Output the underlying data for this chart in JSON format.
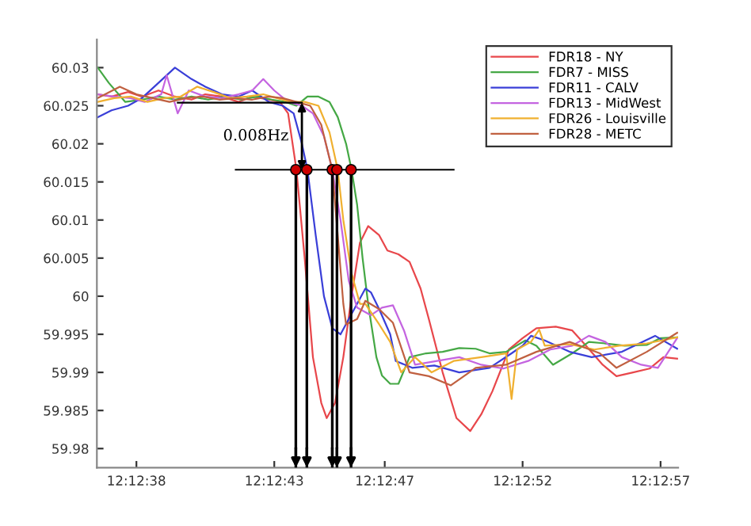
{
  "chart_data": {
    "type": "line",
    "annotations": [
      "0.008Hz"
    ],
    "xlim": [
      12.210158,
      12.21601
    ],
    "ylim": [
      59.9775,
      60.0337
    ],
    "xticks": [
      {
        "value": 12.210556,
        "label": "12:12:38"
      },
      {
        "value": 12.211944,
        "label": "12:12:43"
      },
      {
        "value": 12.213056,
        "label": "12:12:47"
      },
      {
        "value": 12.214444,
        "label": "12:12:52"
      },
      {
        "value": 12.215833,
        "label": "12:12:57"
      }
    ],
    "yticks": [
      59.98,
      59.985,
      59.99,
      59.995,
      60,
      60.005,
      60.01,
      60.015,
      60.02,
      60.025,
      60.03
    ],
    "grid": false,
    "legend": "top right",
    "marker": "none",
    "line_style": "solid",
    "ref_lines": [
      {
        "axis": "x",
        "value": 12.212161,
        "color": "#000000"
      },
      {
        "axis": "x",
        "value": 12.212272,
        "color": "#000000"
      },
      {
        "axis": "x",
        "value": 12.212528,
        "color": "#000000"
      },
      {
        "axis": "x",
        "value": 12.212575,
        "color": "#000000"
      },
      {
        "axis": "x",
        "value": 12.212717,
        "color": "#000000"
      }
    ],
    "series": [
      {
        "name": "FDR18 - NY",
        "color": "#e8474b",
        "x": [
          12.210167,
          12.210306,
          12.210472,
          12.210611,
          12.210778,
          12.210944,
          12.211111,
          12.21125,
          12.211417,
          12.211583,
          12.211722,
          12.211889,
          12.212,
          12.212083,
          12.212167,
          12.21225,
          12.212333,
          12.212417,
          12.212472,
          12.212556,
          12.212639,
          12.212722,
          12.212806,
          12.212889,
          12.213,
          12.213083,
          12.213194,
          12.213306,
          12.213417,
          12.2135,
          12.213639,
          12.213778,
          12.213917,
          12.214028,
          12.214139,
          12.214306,
          12.214444,
          12.214583,
          12.214778,
          12.214944,
          12.215083,
          12.21525,
          12.215389,
          12.215556,
          12.215722,
          12.215861,
          12.216
        ],
        "values": [
          60.0265,
          60.0262,
          60.0268,
          60.0262,
          60.027,
          60.0262,
          60.0258,
          60.0265,
          60.0262,
          60.0255,
          60.0262,
          60.0258,
          60.0255,
          60.024,
          60.0166,
          60.005,
          59.992,
          59.986,
          59.984,
          59.986,
          59.992,
          60.0,
          60.007,
          60.0092,
          60.008,
          60.006,
          60.0055,
          60.0045,
          60.001,
          59.997,
          59.99,
          59.984,
          59.9823,
          59.9845,
          59.9875,
          59.993,
          59.9945,
          59.9958,
          59.996,
          59.9955,
          59.9935,
          59.991,
          59.9895,
          59.99,
          59.9905,
          59.992,
          59.9918
        ]
      },
      {
        "name": "FDR7 - MISS",
        "color": "#45a845",
        "x": [
          12.210167,
          12.210278,
          12.210444,
          12.210611,
          12.210778,
          12.210944,
          12.211111,
          12.211278,
          12.211444,
          12.211611,
          12.211778,
          12.211917,
          12.212056,
          12.212167,
          12.212278,
          12.212389,
          12.2125,
          12.212583,
          12.212667,
          12.212722,
          12.212778,
          12.212833,
          12.212889,
          12.212972,
          12.213028,
          12.213111,
          12.213194,
          12.213306,
          12.213472,
          12.213639,
          12.213806,
          12.213972,
          12.214111,
          12.214278,
          12.214472,
          12.214583,
          12.21475,
          12.214944,
          12.215111,
          12.215278,
          12.215472,
          12.215694,
          12.215833,
          12.216
        ],
        "values": [
          60.03,
          60.028,
          60.0255,
          60.0258,
          60.0262,
          60.0258,
          60.0262,
          60.0258,
          60.0262,
          60.0258,
          60.0262,
          60.0258,
          60.0255,
          60.025,
          60.0262,
          60.0262,
          60.0255,
          60.0235,
          60.02,
          60.0166,
          60.012,
          60.005,
          59.999,
          59.992,
          59.9896,
          59.9885,
          59.9885,
          59.992,
          59.9925,
          59.9927,
          59.9932,
          59.9931,
          59.9925,
          59.9927,
          59.9942,
          59.9935,
          59.991,
          59.9925,
          59.994,
          59.9938,
          59.9935,
          59.9936,
          59.9945,
          59.9946
        ]
      },
      {
        "name": "FDR11 - CALV",
        "color": "#3a3fd8",
        "x": [
          12.210167,
          12.210306,
          12.210472,
          12.210611,
          12.210778,
          12.210944,
          12.211111,
          12.21125,
          12.211417,
          12.211583,
          12.211722,
          12.211889,
          12.212028,
          12.212139,
          12.212222,
          12.212278,
          12.212361,
          12.212444,
          12.212528,
          12.212611,
          12.212694,
          12.212778,
          12.212861,
          12.212917,
          12.213,
          12.213111,
          12.213167,
          12.213333,
          12.213556,
          12.213806,
          12.214111,
          12.214333,
          12.214444,
          12.214528,
          12.214667,
          12.214917,
          12.215139,
          12.215444,
          12.215778,
          12.216
        ],
        "values": [
          60.0235,
          60.0244,
          60.025,
          60.026,
          60.028,
          60.03,
          60.0285,
          60.0275,
          60.0265,
          60.0262,
          60.027,
          60.0255,
          60.025,
          60.024,
          60.02,
          60.0166,
          60.008,
          60.0,
          59.9958,
          59.995,
          59.997,
          59.999,
          60.001,
          60.0005,
          59.9983,
          59.995,
          59.9915,
          59.9906,
          59.9909,
          59.99,
          59.9906,
          59.9925,
          59.9935,
          59.9948,
          59.9942,
          59.9927,
          59.992,
          59.9927,
          59.9948,
          59.9931
        ]
      },
      {
        "name": "FDR13 - MidWest",
        "color": "#c464e0",
        "x": [
          12.210167,
          12.210333,
          12.2105,
          12.210639,
          12.210806,
          12.210861,
          12.210972,
          12.211083,
          12.21125,
          12.211417,
          12.211583,
          12.211722,
          12.211833,
          12.211944,
          12.212083,
          12.212222,
          12.212333,
          12.212444,
          12.212528,
          12.212611,
          12.212694,
          12.212778,
          12.212917,
          12.213028,
          12.213139,
          12.21325,
          12.213361,
          12.213583,
          12.213806,
          12.214028,
          12.21425,
          12.2145,
          12.214722,
          12.214944,
          12.215111,
          12.215278,
          12.215444,
          12.215639,
          12.215806,
          12.216
        ],
        "values": [
          60.0265,
          60.0262,
          60.026,
          60.0255,
          60.0265,
          60.029,
          60.024,
          60.027,
          60.0262,
          60.026,
          60.0265,
          60.027,
          60.0285,
          60.027,
          60.0255,
          60.025,
          60.024,
          60.021,
          60.0166,
          60.01,
          60.002,
          59.9985,
          59.9975,
          59.9985,
          59.9988,
          59.9955,
          59.991,
          59.9915,
          59.992,
          59.991,
          59.9905,
          59.9915,
          59.993,
          59.9935,
          59.9948,
          59.994,
          59.992,
          59.991,
          59.9906,
          59.9945
        ]
      },
      {
        "name": "FDR26 - Louisville",
        "color": "#f0b030",
        "x": [
          12.210167,
          12.210333,
          12.2105,
          12.210667,
          12.210833,
          12.211,
          12.211167,
          12.211333,
          12.2115,
          12.211667,
          12.211833,
          12.211972,
          12.212111,
          12.21225,
          12.212389,
          12.2125,
          12.212583,
          12.212639,
          12.212722,
          12.212806,
          12.212861,
          12.213,
          12.213111,
          12.213222,
          12.213361,
          12.213528,
          12.21375,
          12.214028,
          12.214278,
          12.214333,
          12.214389,
          12.214528,
          12.214611,
          12.214667,
          12.214917,
          12.215167,
          12.215417,
          12.215694,
          12.216
        ],
        "values": [
          60.0255,
          60.026,
          60.0262,
          60.0255,
          60.026,
          60.0262,
          60.0275,
          60.0268,
          60.026,
          60.0262,
          60.0265,
          60.026,
          60.0255,
          60.0255,
          60.025,
          60.0215,
          60.0166,
          60.01,
          60.003,
          59.999,
          59.999,
          59.9963,
          59.994,
          59.99,
          59.992,
          59.99,
          59.9915,
          59.992,
          59.9925,
          59.9865,
          59.993,
          59.994,
          59.9956,
          59.9935,
          59.9937,
          59.993,
          59.9935,
          59.9938,
          59.9946
        ]
      },
      {
        "name": "FDR28 - METC",
        "color": "#c06040",
        "x": [
          12.210167,
          12.210389,
          12.210556,
          12.210722,
          12.210889,
          12.211056,
          12.211222,
          12.211389,
          12.211556,
          12.211722,
          12.211889,
          12.212028,
          12.212167,
          12.212306,
          12.212417,
          12.212528,
          12.212583,
          12.212639,
          12.212667,
          12.212778,
          12.212861,
          12.213,
          12.213139,
          12.213306,
          12.2135,
          12.213722,
          12.213972,
          12.214278,
          12.214583,
          12.214917,
          12.215222,
          12.215389,
          12.215694,
          12.216
        ],
        "values": [
          60.026,
          60.0275,
          60.0265,
          60.026,
          60.0255,
          60.026,
          60.0262,
          60.0258,
          60.026,
          60.0258,
          60.0262,
          60.026,
          60.0255,
          60.025,
          60.0225,
          60.0166,
          60.008,
          59.999,
          59.9963,
          59.997,
          59.9994,
          59.9983,
          59.9965,
          59.99,
          59.9895,
          59.9883,
          59.9906,
          59.991,
          59.9927,
          59.994,
          59.9925,
          59.9906,
          59.9927,
          59.9952
        ]
      },
      {
        "color": "#000000",
        "x": [
          12.210972,
          12.212222
        ],
        "values": [
          60.0254,
          60.0254
        ]
      },
      {
        "color": "#000000",
        "x": [
          12.211556,
          12.21375
        ],
        "values": [
          60.0166,
          60.0166
        ]
      },
      {
        "type": "scatter",
        "color": "#cc0000",
        "marker": "circle",
        "x": [
          12.212161,
          12.212272,
          12.212528,
          12.212575,
          12.212717
        ],
        "values": [
          60.0166,
          60.0166,
          60.0166,
          60.0166,
          60.0166
        ]
      }
    ]
  }
}
